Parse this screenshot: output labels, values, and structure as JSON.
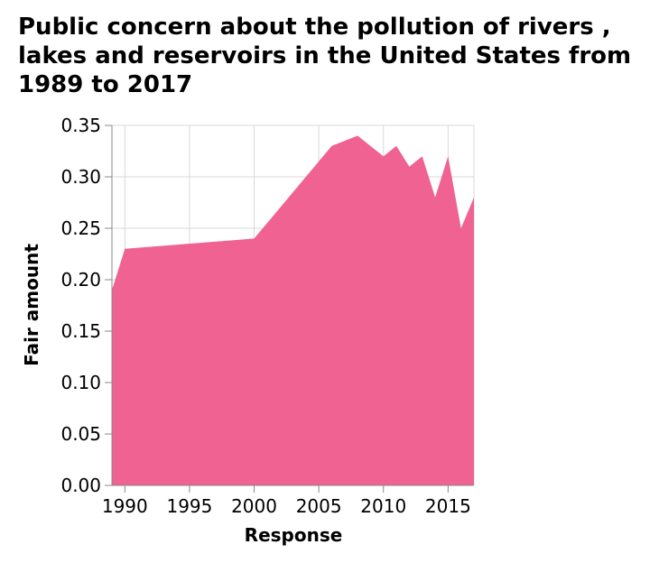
{
  "chart_data": {
    "type": "area",
    "title": "Public concern about the pollution of rivers , lakes and reservoirs in the United States from 1989 to 2017",
    "xlabel": "Response",
    "ylabel": "Fair amount",
    "x": [
      1989,
      1990,
      2000,
      2006,
      2008,
      2010,
      2011,
      2012,
      2013,
      2014,
      2015,
      2016,
      2017
    ],
    "series": [
      {
        "name": "",
        "values": [
          0.19,
          0.23,
          0.24,
          0.33,
          0.34,
          0.32,
          0.33,
          0.31,
          0.32,
          0.28,
          0.32,
          0.25,
          0.28
        ]
      }
    ],
    "xlim": [
      1989,
      2017
    ],
    "ylim": [
      0,
      0.35
    ],
    "x_ticks": [
      1990,
      1995,
      2000,
      2005,
      2010,
      2015
    ],
    "y_ticks": [
      0,
      0.05,
      0.1,
      0.15,
      0.2,
      0.25,
      0.3,
      0.35
    ],
    "x_tick_labels": [
      "1990",
      "1995",
      "2000",
      "2005",
      "2010",
      "2015"
    ],
    "y_tick_labels": [
      "0.00",
      "0.05",
      "0.10",
      "0.15",
      "0.20",
      "0.25",
      "0.30",
      "0.35"
    ],
    "grid": true,
    "colors": {
      "fill": "#f06292",
      "grid": "#d9d9d9",
      "axis": "#888888"
    }
  }
}
